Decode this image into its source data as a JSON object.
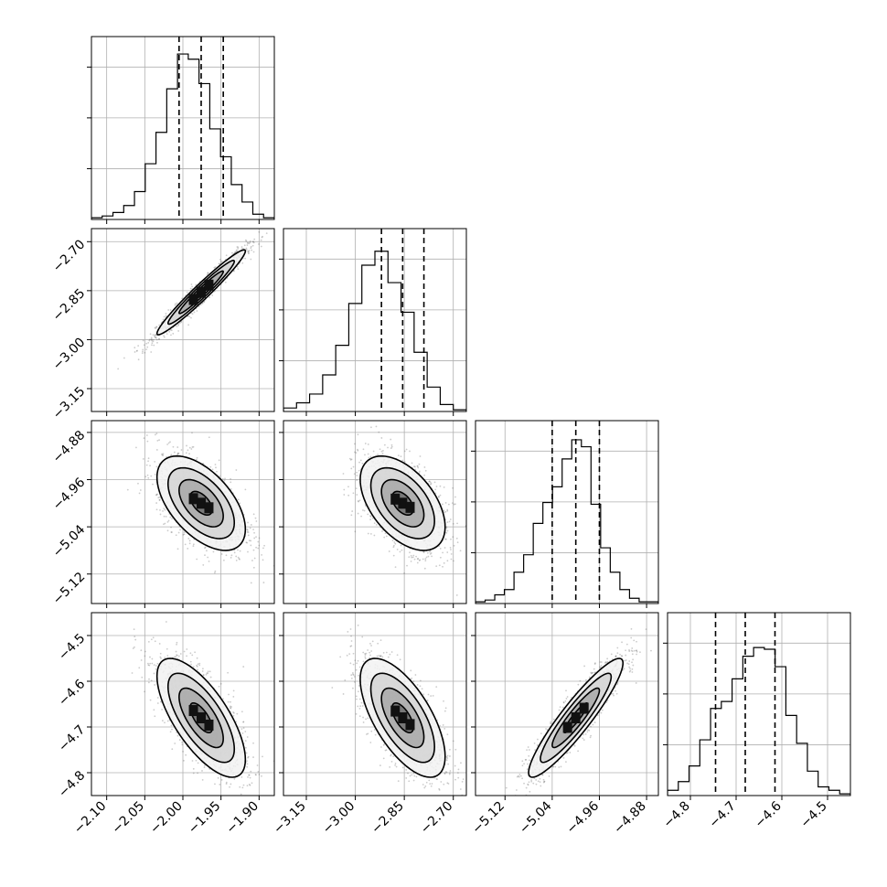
{
  "chart_data": {
    "type": "corner",
    "title": "",
    "grid": true,
    "quantile_lines": "dashed",
    "parameters": [
      {
        "range": [
          -2.12,
          -1.88
        ],
        "ticks": [
          -2.1,
          -2.05,
          -2.0,
          -1.95,
          -1.9
        ],
        "tick_labels": [
          "−2.10",
          "−2.05",
          "−2.00",
          "−1.95",
          "−1.90"
        ],
        "quantiles": [
          -2.005,
          -1.976,
          -1.947
        ],
        "hist_counts": [
          0.01,
          0.02,
          0.04,
          0.08,
          0.16,
          0.32,
          0.5,
          0.75,
          0.95,
          0.92,
          0.78,
          0.52,
          0.36,
          0.2,
          0.1,
          0.03,
          0.01
        ]
      },
      {
        "range": [
          -3.22,
          -2.66
        ],
        "ticks": [
          -3.15,
          -3.0,
          -2.85,
          -2.7
        ],
        "tick_labels": [
          "−3.15",
          "−3.00",
          "−2.85",
          "−2.70"
        ],
        "quantiles": [
          -2.92,
          -2.855,
          -2.79
        ],
        "hist_counts": [
          0.02,
          0.05,
          0.1,
          0.21,
          0.38,
          0.62,
          0.84,
          0.92,
          0.74,
          0.57,
          0.34,
          0.14,
          0.04,
          0.01
        ]
      },
      {
        "range": [
          -5.17,
          -4.86
        ],
        "ticks": [
          -5.12,
          -5.04,
          -4.96,
          -4.88
        ],
        "tick_labels": [
          "−5.12",
          "−5.04",
          "−4.96",
          "−4.88"
        ],
        "quantiles": [
          -5.04,
          -5.0,
          -4.96
        ],
        "hist_counts": [
          0.01,
          0.02,
          0.05,
          0.08,
          0.18,
          0.28,
          0.46,
          0.58,
          0.67,
          0.83,
          0.94,
          0.9,
          0.57,
          0.32,
          0.18,
          0.08,
          0.03,
          0.01,
          0.01
        ]
      },
      {
        "range": [
          -4.85,
          -4.45
        ],
        "ticks": [
          -4.8,
          -4.7,
          -4.6,
          -4.5
        ],
        "tick_labels": [
          "−4.8",
          "−4.7",
          "−4.6",
          "−4.5"
        ],
        "quantiles": [
          -4.745,
          -4.68,
          -4.615
        ],
        "hist_counts": [
          0.03,
          0.08,
          0.17,
          0.32,
          0.5,
          0.54,
          0.67,
          0.8,
          0.85,
          0.84,
          0.74,
          0.46,
          0.3,
          0.14,
          0.05,
          0.03,
          0.01
        ]
      }
    ],
    "correlations": [
      [
        1.0,
        0.97,
        -0.55,
        -0.7
      ],
      [
        0.97,
        1.0,
        -0.5,
        -0.65
      ],
      [
        -0.55,
        -0.5,
        1.0,
        0.92
      ],
      [
        -0.7,
        -0.65,
        0.92,
        1.0
      ]
    ],
    "contour_levels": [
      0.5,
      1.0,
      1.5,
      2.0
    ]
  }
}
